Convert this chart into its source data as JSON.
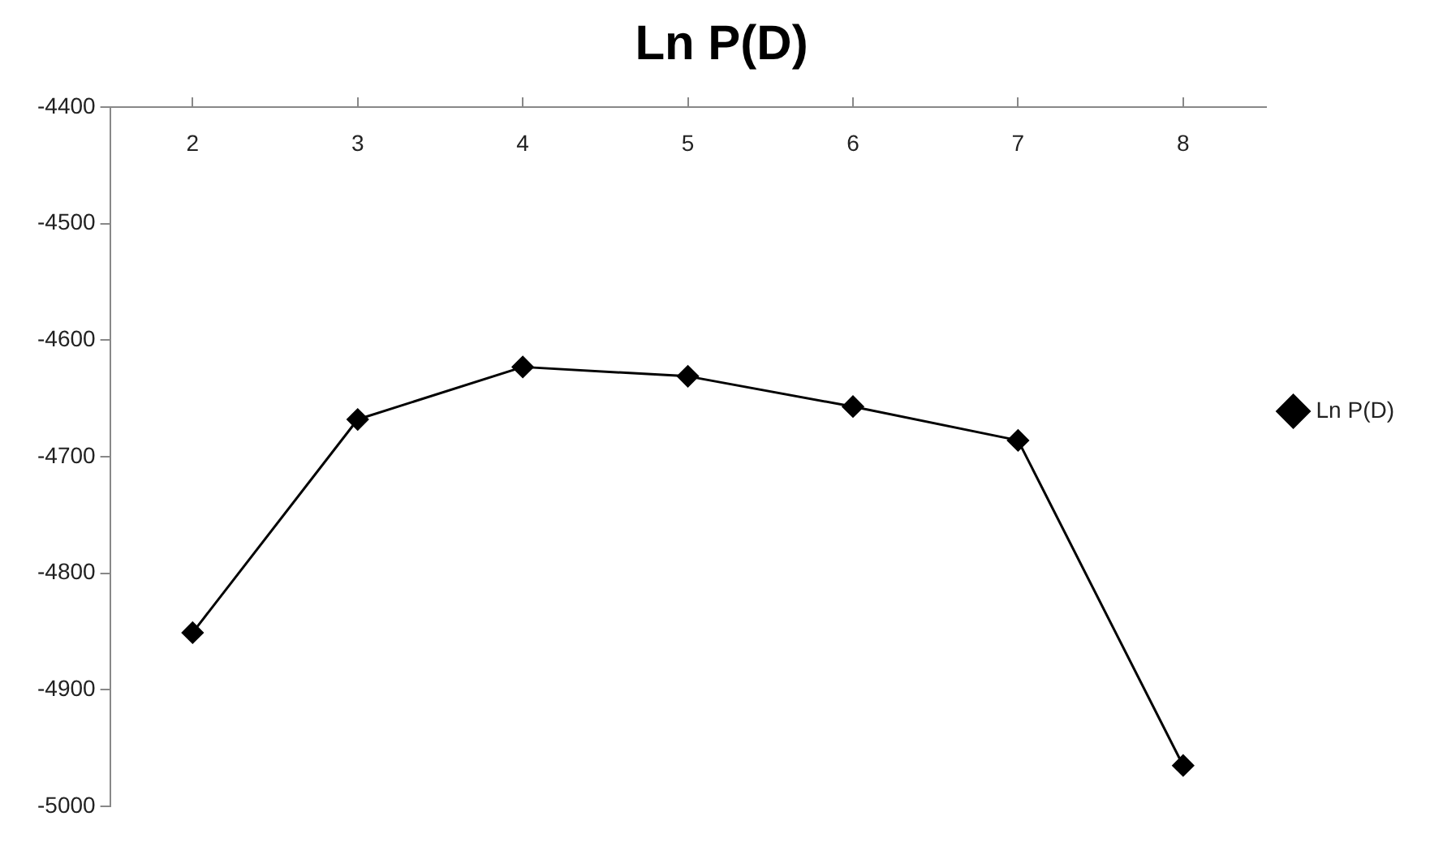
{
  "chart_data": {
    "type": "line",
    "title": "Ln P(D)",
    "categories": [
      "2",
      "3",
      "4",
      "5",
      "6",
      "7",
      "8"
    ],
    "series": [
      {
        "name": "Ln P(D)",
        "color": "#000000",
        "values": [
          -4851,
          -4668,
          -4623,
          -4631,
          -4657,
          -4686,
          -4965
        ]
      }
    ],
    "ylim": [
      -5000,
      -4400
    ],
    "yticks": [
      -5000,
      -4900,
      -4800,
      -4700,
      -4600,
      -4500,
      -4400
    ],
    "grid": false,
    "legend": "right",
    "marker": "diamond",
    "line_style": "solid"
  }
}
